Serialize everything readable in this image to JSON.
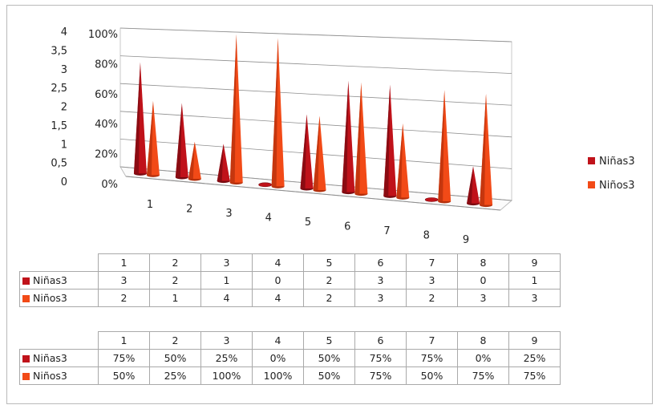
{
  "colors": {
    "ninas": "#c0121a",
    "ninos": "#f24a17"
  },
  "chart_data": {
    "type": "bar",
    "bar_shape": "cone",
    "categories": [
      "1",
      "2",
      "3",
      "4",
      "5",
      "6",
      "7",
      "8",
      "9"
    ],
    "series": [
      {
        "name": "Niñas3",
        "values": [
          75,
          50,
          25,
          0,
          50,
          75,
          75,
          0,
          25
        ]
      },
      {
        "name": "Niños3",
        "values": [
          50,
          25,
          100,
          100,
          50,
          75,
          50,
          75,
          75
        ]
      }
    ],
    "y_primary_ticks": [
      "0%",
      "20%",
      "40%",
      "60%",
      "80%",
      "100%"
    ],
    "y_secondary_ticks": [
      "0",
      "0,5",
      "1",
      "1,5",
      "2",
      "2,5",
      "3",
      "3,5",
      "4"
    ],
    "ylim": [
      0,
      100
    ],
    "grid": true,
    "legend_position": "right",
    "title": "",
    "xlabel": "",
    "ylabel": ""
  },
  "legend": {
    "items": [
      "Niñas3",
      "Niños3"
    ]
  },
  "tables": {
    "counts": {
      "headers": [
        "1",
        "2",
        "3",
        "4",
        "5",
        "6",
        "7",
        "8",
        "9"
      ],
      "rows": [
        {
          "label": "Niñas3",
          "values": [
            "3",
            "2",
            "1",
            "0",
            "2",
            "3",
            "3",
            "0",
            "1"
          ]
        },
        {
          "label": "Niños3",
          "values": [
            "2",
            "1",
            "4",
            "4",
            "2",
            "3",
            "2",
            "3",
            "3"
          ]
        }
      ]
    },
    "percents": {
      "headers": [
        "1",
        "2",
        "3",
        "4",
        "5",
        "6",
        "7",
        "8",
        "9"
      ],
      "rows": [
        {
          "label": "Niñas3",
          "values": [
            "75%",
            "50%",
            "25%",
            "0%",
            "50%",
            "75%",
            "75%",
            "0%",
            "25%"
          ]
        },
        {
          "label": "Niños3",
          "values": [
            "50%",
            "25%",
            "100%",
            "100%",
            "50%",
            "75%",
            "50%",
            "75%",
            "75%"
          ]
        }
      ]
    }
  }
}
